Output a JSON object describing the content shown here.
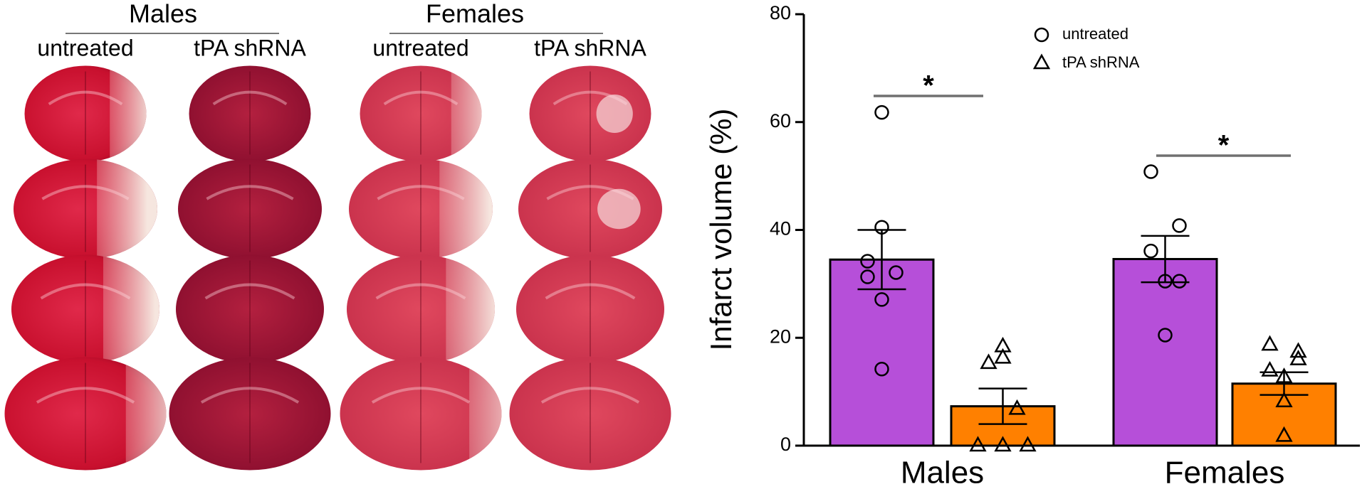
{
  "figure_labels": {
    "groups": [
      {
        "title": "Males",
        "columns": [
          "untreated",
          "tPA shRNA"
        ]
      },
      {
        "title": "Females",
        "columns": [
          "untreated",
          "tPA shRNA"
        ]
      }
    ]
  },
  "chart_data": {
    "type": "bar",
    "categories": [
      "Males",
      "Females"
    ],
    "y_label": "Infarct volume (%)",
    "ylim": [
      0,
      80
    ],
    "yticks": [
      0,
      20,
      40,
      60,
      80
    ],
    "series": [
      {
        "name": "untreated",
        "color": "#b64fd9",
        "marker": "circle",
        "values": [
          34.5,
          34.6
        ],
        "errors": [
          5.5,
          4.3
        ],
        "points": [
          [
            61.8,
            40.5,
            34.2,
            32.1,
            31.3,
            27.1,
            14.2
          ],
          [
            50.8,
            40.8,
            36.1,
            30.5,
            30.5,
            20.5
          ]
        ]
      },
      {
        "name": "tPA shRNA",
        "color": "#ff8000",
        "marker": "triangle",
        "values": [
          7.3,
          11.5
        ],
        "errors": [
          3.3,
          2.1
        ],
        "points": [
          [
            18.4,
            16.3,
            15.3,
            6.8,
            0,
            0,
            0
          ],
          [
            18.7,
            17.4,
            16,
            13.9,
            12.7,
            8.2,
            1.8
          ]
        ]
      }
    ],
    "significance_labels": [
      "*",
      "*"
    ]
  }
}
